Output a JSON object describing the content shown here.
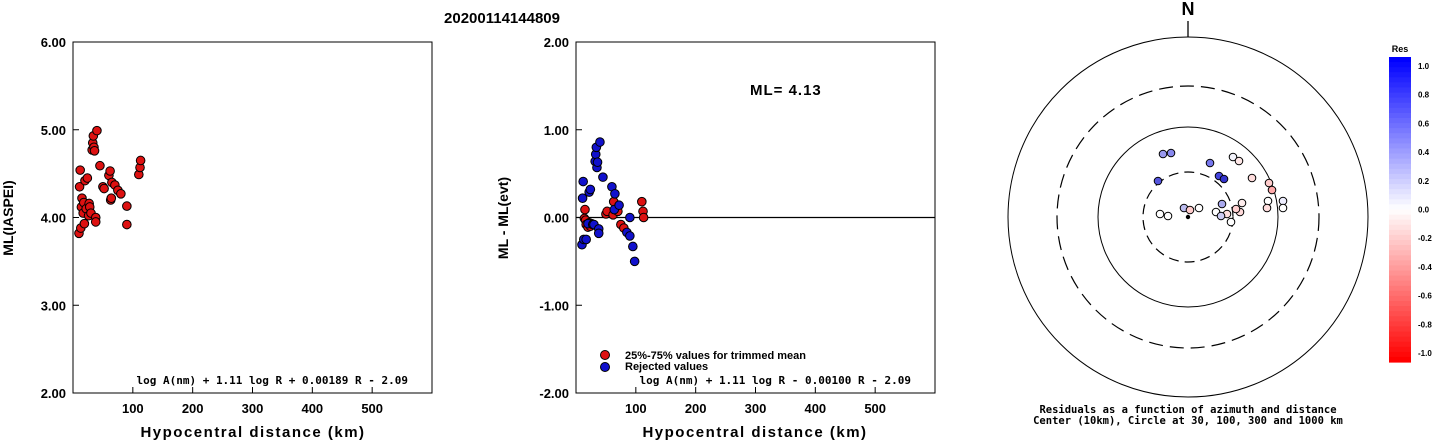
{
  "event_id": "20200114144809",
  "north_label": "N",
  "chart_data": [
    {
      "type": "scatter",
      "title": "20200114144809",
      "xlabel": "Hypocentral distance (km)",
      "ylabel": "ML(IASPEI)",
      "xlim": [
        0,
        600
      ],
      "ylim": [
        2.0,
        6.0
      ],
      "xticks": [
        "100",
        "200",
        "300",
        "400",
        "500"
      ],
      "yticks": [
        "2.00",
        "3.00",
        "4.00",
        "5.00",
        "6.00"
      ],
      "formula": "log A(nm) + 1.11 log R + 0.00189 R - 2.09",
      "series": [
        {
          "color": "#dd1111",
          "points": [
            [
              10,
              3.82
            ],
            [
              11,
              4.35
            ],
            [
              12,
              4.54
            ],
            [
              13,
              3.88
            ],
            [
              14,
              4.12
            ],
            [
              15,
              4.22
            ],
            [
              17,
              4.05
            ],
            [
              18,
              4.17
            ],
            [
              19,
              3.93
            ],
            [
              20,
              4.42
            ],
            [
              22,
              4.1
            ],
            [
              24,
              4.45
            ],
            [
              26,
              4.02
            ],
            [
              27,
              4.16
            ],
            [
              28,
              4.12
            ],
            [
              30,
              4.05
            ],
            [
              32,
              4.77
            ],
            [
              33,
              4.85
            ],
            [
              34,
              4.93
            ],
            [
              35,
              4.8
            ],
            [
              36,
              4.76
            ],
            [
              38,
              4.0
            ],
            [
              38,
              3.95
            ],
            [
              40,
              4.99
            ],
            [
              45,
              4.59
            ],
            [
              50,
              4.35
            ],
            [
              52,
              4.33
            ],
            [
              60,
              4.48
            ],
            [
              62,
              4.53
            ],
            [
              63,
              4.2
            ],
            [
              64,
              4.22
            ],
            [
              65,
              4.4
            ],
            [
              70,
              4.37
            ],
            [
              75,
              4.31
            ],
            [
              80,
              4.27
            ],
            [
              90,
              4.13
            ],
            [
              90,
              3.92
            ],
            [
              110,
              4.49
            ],
            [
              112,
              4.57
            ],
            [
              113,
              4.65
            ]
          ]
        }
      ]
    },
    {
      "type": "scatter",
      "title": "",
      "xlabel": "Hypocentral distance (km)",
      "ylabel": "ML - ML(evt)",
      "xlim": [
        0,
        600
      ],
      "ylim": [
        -2.0,
        2.0
      ],
      "xticks": [
        "100",
        "200",
        "300",
        "400",
        "500"
      ],
      "yticks": [
        "-2.00",
        "-1.00",
        "0.00",
        "1.00",
        "2.00"
      ],
      "annotation": "ML= 4.13",
      "formula": "log A(nm) + 1.11 log R - 0.00100 R - 2.09",
      "legend": [
        "25%-75% values for trimmed mean",
        "Rejected values"
      ],
      "zero_line": 0.0,
      "series": [
        {
          "name": "25%-75% values for trimmed mean",
          "color": "#dd1111",
          "points": [
            [
              14,
              -0.01
            ],
            [
              15,
              0.09
            ],
            [
              16,
              -0.03
            ],
            [
              17,
              -0.08
            ],
            [
              20,
              -0.11
            ],
            [
              22,
              -0.06
            ],
            [
              24,
              -0.1
            ],
            [
              26,
              -0.07
            ],
            [
              28,
              -0.08
            ],
            [
              50,
              0.04
            ],
            [
              52,
              0.07
            ],
            [
              62,
              0.03
            ],
            [
              63,
              0.18
            ],
            [
              70,
              0.07
            ],
            [
              75,
              -0.08
            ],
            [
              80,
              -0.12
            ],
            [
              110,
              0.18
            ],
            [
              112,
              0.07
            ],
            [
              113,
              0.0
            ]
          ]
        },
        {
          "name": "Rejected values",
          "color": "#1111cc",
          "points": [
            [
              10,
              -0.31
            ],
            [
              11,
              0.22
            ],
            [
              12,
              0.41
            ],
            [
              13,
              -0.25
            ],
            [
              17,
              -0.25
            ],
            [
              20,
              -0.07
            ],
            [
              22,
              0.29
            ],
            [
              24,
              0.32
            ],
            [
              28,
              -0.08
            ],
            [
              30,
              -0.08
            ],
            [
              32,
              0.64
            ],
            [
              33,
              0.72
            ],
            [
              34,
              0.8
            ],
            [
              35,
              0.57
            ],
            [
              36,
              0.63
            ],
            [
              38,
              -0.13
            ],
            [
              38,
              -0.18
            ],
            [
              40,
              0.86
            ],
            [
              45,
              0.46
            ],
            [
              60,
              0.35
            ],
            [
              64,
              0.09
            ],
            [
              65,
              0.27
            ],
            [
              72,
              0.14
            ],
            [
              85,
              -0.17
            ],
            [
              90,
              0.0
            ],
            [
              90,
              -0.21
            ],
            [
              95,
              -0.33
            ],
            [
              98,
              -0.5
            ]
          ]
        }
      ]
    },
    {
      "type": "polar-scatter",
      "caption_line1": "Residuals as a function of azimuth and distance",
      "caption_line2": "Center (10km), Circle at 30, 100, 300 and 1000 km",
      "ring_distances_km": [
        30,
        100,
        300,
        1000
      ],
      "colorbar_title": "Res",
      "colorbar_ticks": [
        "1.0",
        "0.8",
        "0.6",
        "0.4",
        "0.2",
        "0.0",
        "-0.2",
        "-0.4",
        "-0.6",
        "-0.8",
        "-1.0"
      ],
      "points_residual_color": [
        {
          "color": "#9999ee"
        },
        {
          "color": "#8888ee"
        },
        {
          "color": "#5555dd"
        },
        {
          "color": "#7777ee"
        },
        {
          "color": "#4444dd"
        },
        {
          "color": "#3333cc"
        },
        {
          "color": "#f3f3fb"
        },
        {
          "color": "#ffe8e8"
        },
        {
          "color": "#ffcccc"
        },
        {
          "color": "#ffaaaa"
        },
        {
          "color": "#ffdddd"
        },
        {
          "color": "#ffffff"
        },
        {
          "color": "#eeeeff"
        },
        {
          "color": "#ffffff"
        },
        {
          "color": "#ffdddd"
        },
        {
          "color": "#aaaaee"
        },
        {
          "color": "#ffeeee"
        },
        {
          "color": "#ffffff"
        },
        {
          "color": "#ffe0e0"
        },
        {
          "color": "#bbbbee"
        },
        {
          "color": "#ffffff"
        },
        {
          "color": "#ffcccc"
        },
        {
          "color": "#ffffff"
        },
        {
          "color": "#ffffff"
        },
        {
          "color": "#ffdada"
        },
        {
          "color": "#ffffff"
        },
        {
          "color": "#ccccf4"
        },
        {
          "color": "#ffd0d0"
        }
      ]
    }
  ]
}
